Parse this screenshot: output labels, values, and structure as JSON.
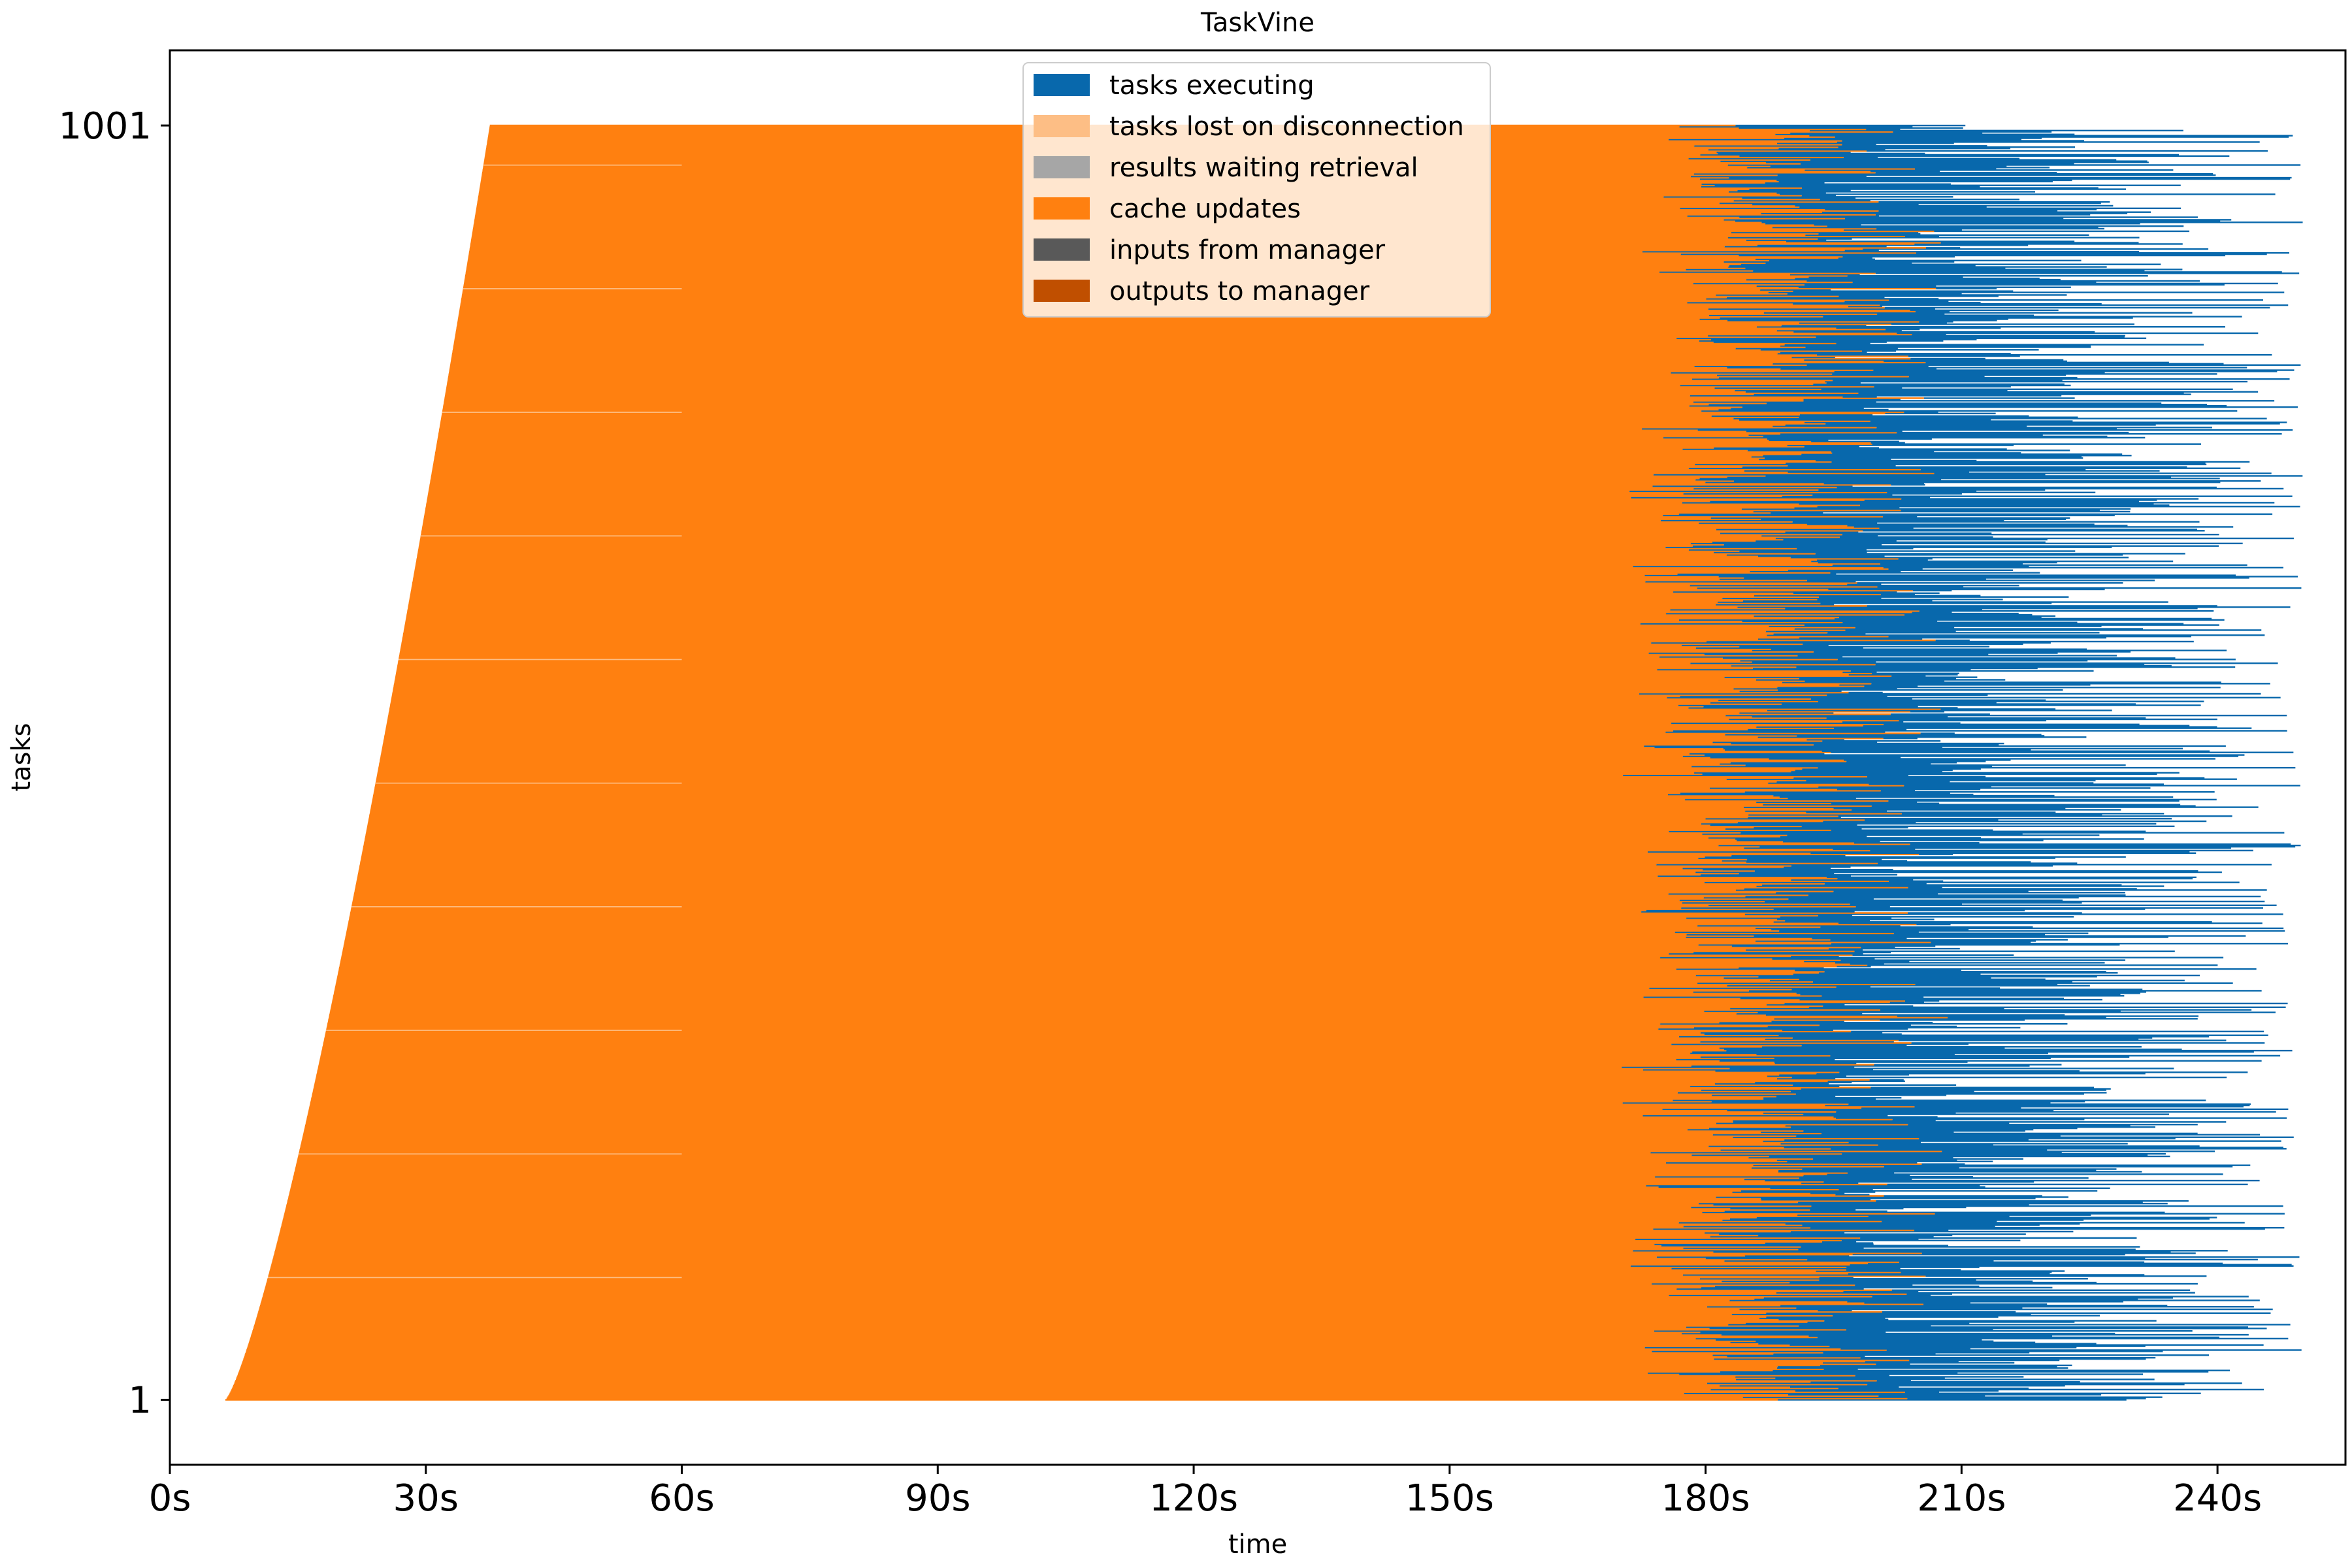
{
  "chart_data": {
    "type": "bar",
    "title": "TaskVine",
    "xlabel": "time",
    "ylabel": "tasks",
    "xlim": [
      0,
      255
    ],
    "ylim": [
      -50,
      1060
    ],
    "x_ticks": [
      {
        "value": 0,
        "label": "0s"
      },
      {
        "value": 30,
        "label": "30s"
      },
      {
        "value": 60,
        "label": "60s"
      },
      {
        "value": 90,
        "label": "90s"
      },
      {
        "value": 120,
        "label": "120s"
      },
      {
        "value": 150,
        "label": "150s"
      },
      {
        "value": 180,
        "label": "180s"
      },
      {
        "value": 210,
        "label": "210s"
      },
      {
        "value": 240,
        "label": "240s"
      }
    ],
    "y_ticks": [
      {
        "value": 1,
        "label": "1"
      },
      {
        "value": 1001,
        "label": "1001"
      }
    ],
    "grid": false,
    "legend_position": "top-center",
    "legend": [
      {
        "label": "tasks executing",
        "color": "#0868ac"
      },
      {
        "label": "tasks lost on disconnection",
        "color": "#fdbe85"
      },
      {
        "label": "results waiting retrieval",
        "color": "#a6a6a6"
      },
      {
        "label": "cache updates",
        "color": "#ff8010"
      },
      {
        "label": "inputs from manager",
        "color": "#595959"
      },
      {
        "label": "outputs to manager",
        "color": "#c04f00"
      }
    ],
    "task_count": 1001,
    "cache_updates_start_time": {
      "task_1": 6.5,
      "task_1001": 37.5
    },
    "cache_updates_end_time_range": [
      145,
      210
    ],
    "tasks_executing_end_time_range": [
      175,
      250
    ]
  }
}
